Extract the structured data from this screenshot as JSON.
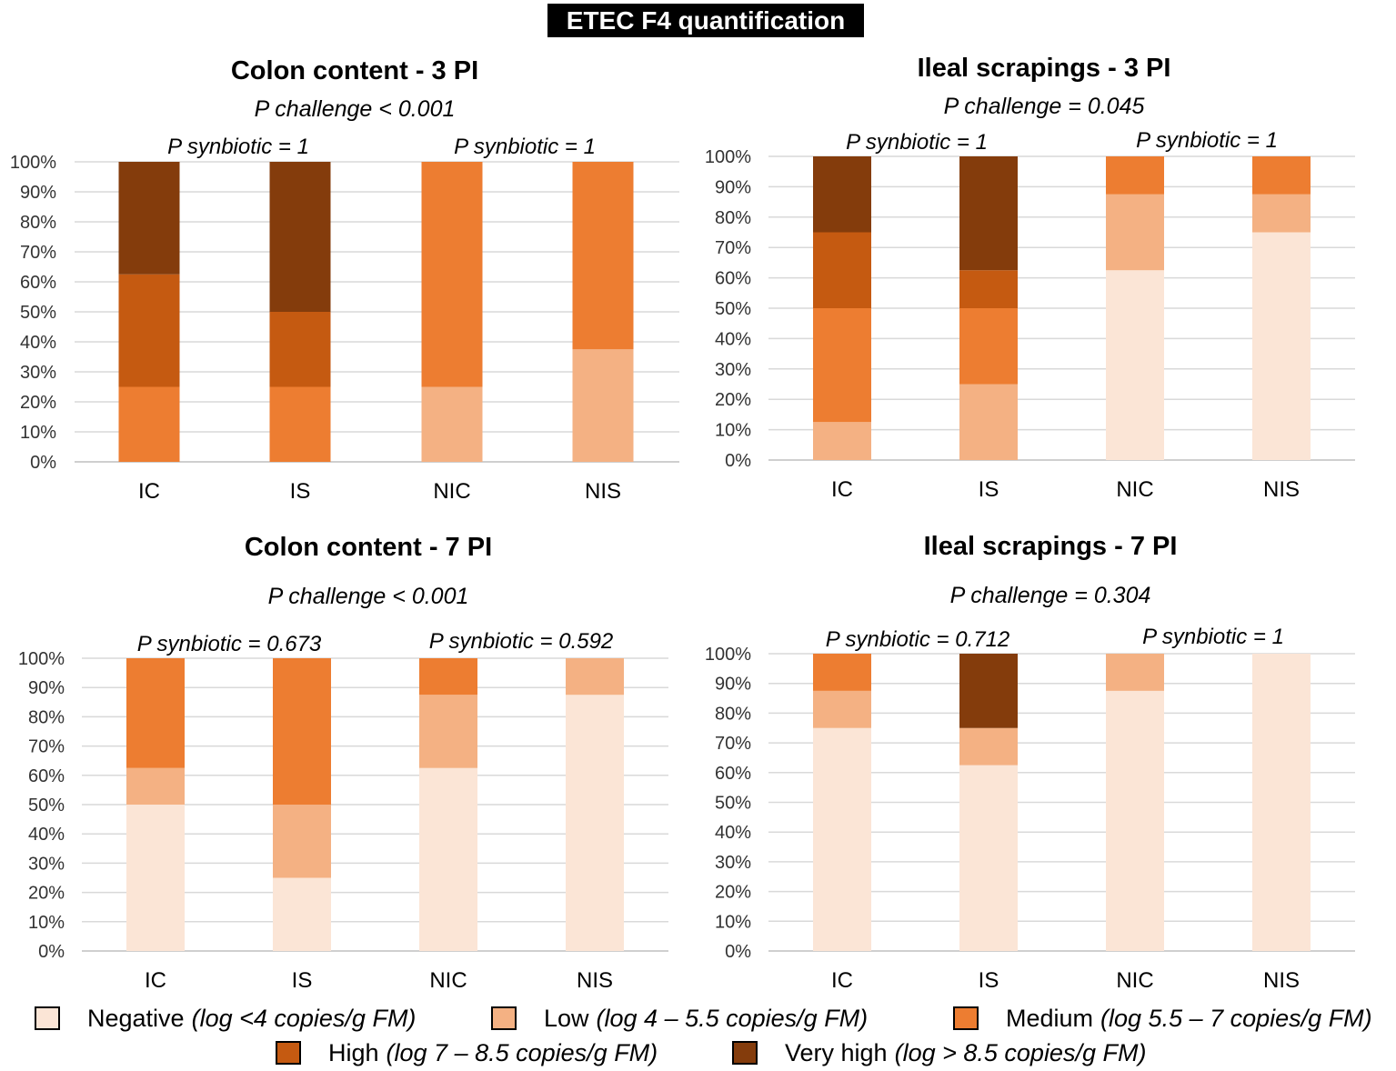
{
  "main_title": "ETEC F4 quantification",
  "legend": [
    {
      "key": "negative",
      "label": "Negative",
      "detail": "(log <4 copies/g FM)",
      "color": "#FBE5D6"
    },
    {
      "key": "low",
      "label": "Low",
      "detail": "(log 4 – 5.5 copies/g FM)",
      "color": "#F4B183"
    },
    {
      "key": "medium",
      "label": "Medium",
      "detail": "(log 5.5 – 7 copies/g FM)",
      "color": "#ED7D31"
    },
    {
      "key": "high",
      "label": "High",
      "detail": "(log 7 – 8.5 copies/g FM)",
      "color": "#C55A11"
    },
    {
      "key": "very_high",
      "label": "Very high",
      "detail": "(log > 8.5 copies/g FM)",
      "color": "#843C0C"
    }
  ],
  "chart_data": [
    {
      "type": "bar",
      "stacked": true,
      "title": "Colon content - 3 PI",
      "p_challenge": "P challenge < 0.001",
      "p_synbiotic": [
        "P synbiotic = 1",
        "P synbiotic = 1"
      ],
      "categories": [
        "IC",
        "IS",
        "NIC",
        "NIS"
      ],
      "yticks": [
        "0%",
        "10%",
        "20%",
        "30%",
        "40%",
        "50%",
        "60%",
        "70%",
        "80%",
        "90%",
        "100%"
      ],
      "ylim": [
        0,
        100
      ],
      "series": [
        {
          "name": "Negative",
          "values": [
            0,
            0,
            0,
            0
          ]
        },
        {
          "name": "Low",
          "values": [
            0,
            0,
            25,
            37.5
          ]
        },
        {
          "name": "Medium",
          "values": [
            25,
            25,
            75,
            62.5
          ]
        },
        {
          "name": "High",
          "values": [
            37.5,
            25,
            0,
            0
          ]
        },
        {
          "name": "Very high",
          "values": [
            37.5,
            50,
            0,
            0
          ]
        }
      ]
    },
    {
      "type": "bar",
      "stacked": true,
      "title": "Ileal scrapings - 3 PI",
      "p_challenge": "P challenge = 0.045",
      "p_synbiotic": [
        "P synbiotic = 1",
        "P synbiotic = 1"
      ],
      "categories": [
        "IC",
        "IS",
        "NIC",
        "NIS"
      ],
      "yticks": [
        "0%",
        "10%",
        "20%",
        "30%",
        "40%",
        "50%",
        "60%",
        "70%",
        "80%",
        "90%",
        "100%"
      ],
      "ylim": [
        0,
        100
      ],
      "series": [
        {
          "name": "Negative",
          "values": [
            0,
            0,
            62.5,
            75
          ]
        },
        {
          "name": "Low",
          "values": [
            12.5,
            25,
            25,
            12.5
          ]
        },
        {
          "name": "Medium",
          "values": [
            37.5,
            25,
            12.5,
            12.5
          ]
        },
        {
          "name": "High",
          "values": [
            25,
            12.5,
            0,
            0
          ]
        },
        {
          "name": "Very high",
          "values": [
            25,
            37.5,
            0,
            0
          ]
        }
      ]
    },
    {
      "type": "bar",
      "stacked": true,
      "title": "Colon content - 7 PI",
      "p_challenge": "P challenge < 0.001",
      "p_synbiotic": [
        "P synbiotic = 0.673",
        "P synbiotic = 0.592"
      ],
      "categories": [
        "IC",
        "IS",
        "NIC",
        "NIS"
      ],
      "yticks": [
        "0%",
        "10%",
        "20%",
        "30%",
        "40%",
        "50%",
        "60%",
        "70%",
        "80%",
        "90%",
        "100%"
      ],
      "ylim": [
        0,
        100
      ],
      "series": [
        {
          "name": "Negative",
          "values": [
            50,
            25,
            62.5,
            87.5
          ]
        },
        {
          "name": "Low",
          "values": [
            12.5,
            25,
            25,
            12.5
          ]
        },
        {
          "name": "Medium",
          "values": [
            37.5,
            50,
            12.5,
            0
          ]
        },
        {
          "name": "High",
          "values": [
            0,
            0,
            0,
            0
          ]
        },
        {
          "name": "Very high",
          "values": [
            0,
            0,
            0,
            0
          ]
        }
      ]
    },
    {
      "type": "bar",
      "stacked": true,
      "title": "Ileal scrapings - 7 PI",
      "p_challenge": "P challenge = 0.304",
      "p_synbiotic": [
        "P synbiotic = 0.712",
        "P synbiotic = 1"
      ],
      "categories": [
        "IC",
        "IS",
        "NIC",
        "NIS"
      ],
      "yticks": [
        "0%",
        "10%",
        "20%",
        "30%",
        "40%",
        "50%",
        "60%",
        "70%",
        "80%",
        "90%",
        "100%"
      ],
      "ylim": [
        0,
        100
      ],
      "series": [
        {
          "name": "Negative",
          "values": [
            75,
            62.5,
            87.5,
            100
          ]
        },
        {
          "name": "Low",
          "values": [
            12.5,
            12.5,
            12.5,
            0
          ]
        },
        {
          "name": "Medium",
          "values": [
            12.5,
            0,
            0,
            0
          ]
        },
        {
          "name": "High",
          "values": [
            0,
            0,
            0,
            0
          ]
        },
        {
          "name": "Very high",
          "values": [
            0,
            25,
            0,
            0
          ]
        }
      ]
    }
  ]
}
